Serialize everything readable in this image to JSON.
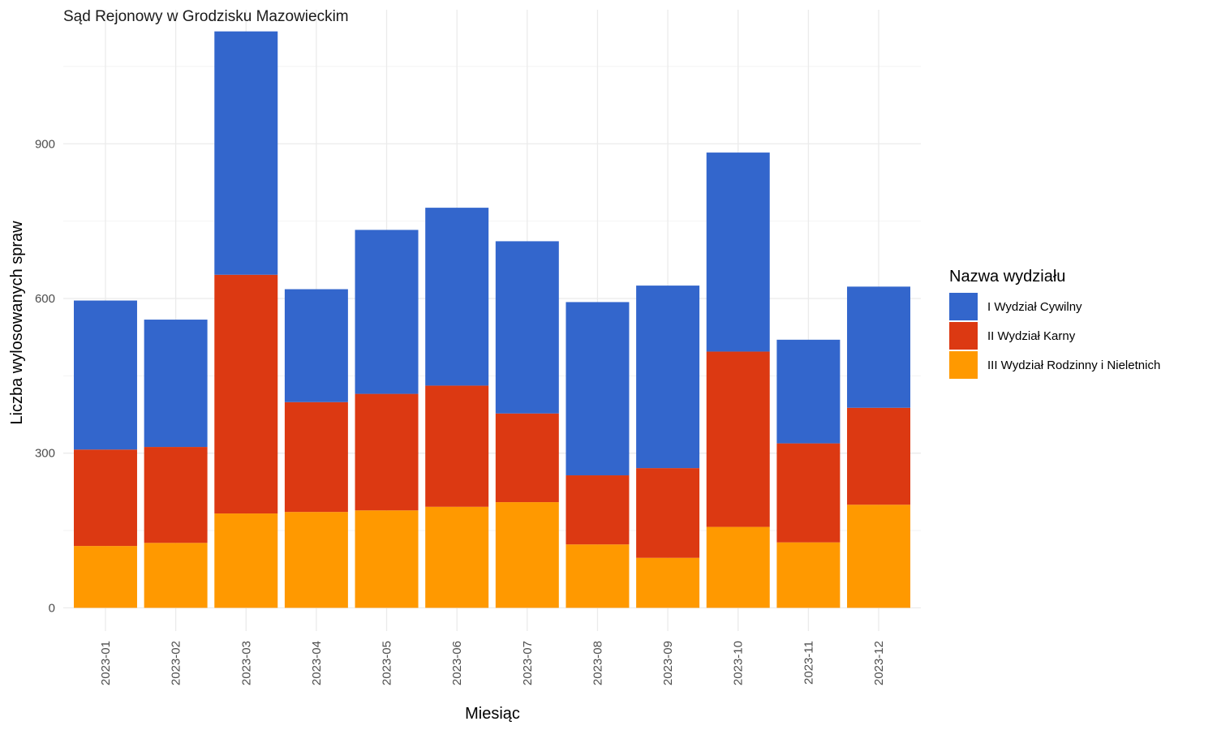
{
  "chart_data": {
    "type": "bar",
    "stacked": true,
    "title": "Sąd Rejonowy w Grodzisku Mazowieckim",
    "xlabel": "Miesiąc",
    "ylabel": "Liczba wylosowanych spraw",
    "categories": [
      "2023-01",
      "2023-02",
      "2023-03",
      "2023-04",
      "2023-05",
      "2023-06",
      "2023-07",
      "2023-08",
      "2023-09",
      "2023-10",
      "2023-11",
      "2023-12"
    ],
    "series": [
      {
        "name": "III Wydział Rodzinny i Nieletnich",
        "color": "#FF9900",
        "values": [
          120,
          126,
          183,
          186,
          189,
          196,
          205,
          123,
          97,
          157,
          127,
          200
        ]
      },
      {
        "name": "II Wydział Karny",
        "color": "#DC3912",
        "values": [
          187,
          186,
          463,
          213,
          226,
          235,
          172,
          134,
          174,
          340,
          192,
          188
        ]
      },
      {
        "name": "I Wydział Cywilny",
        "color": "#3366CC",
        "values": [
          289,
          247,
          472,
          219,
          318,
          345,
          334,
          336,
          354,
          386,
          201,
          235
        ]
      }
    ],
    "ylim": [
      -45,
      1160
    ],
    "yticks": [
      0,
      300,
      600,
      900
    ],
    "ytick_labels": [
      "0",
      "300",
      "600",
      "900"
    ],
    "grid": true,
    "legend": {
      "title": "Nazwa wydziału",
      "position": "right",
      "order": [
        "I Wydział Cywilny",
        "II Wydział Karny",
        "III Wydział Rodzinny i Nieletnich"
      ]
    }
  }
}
